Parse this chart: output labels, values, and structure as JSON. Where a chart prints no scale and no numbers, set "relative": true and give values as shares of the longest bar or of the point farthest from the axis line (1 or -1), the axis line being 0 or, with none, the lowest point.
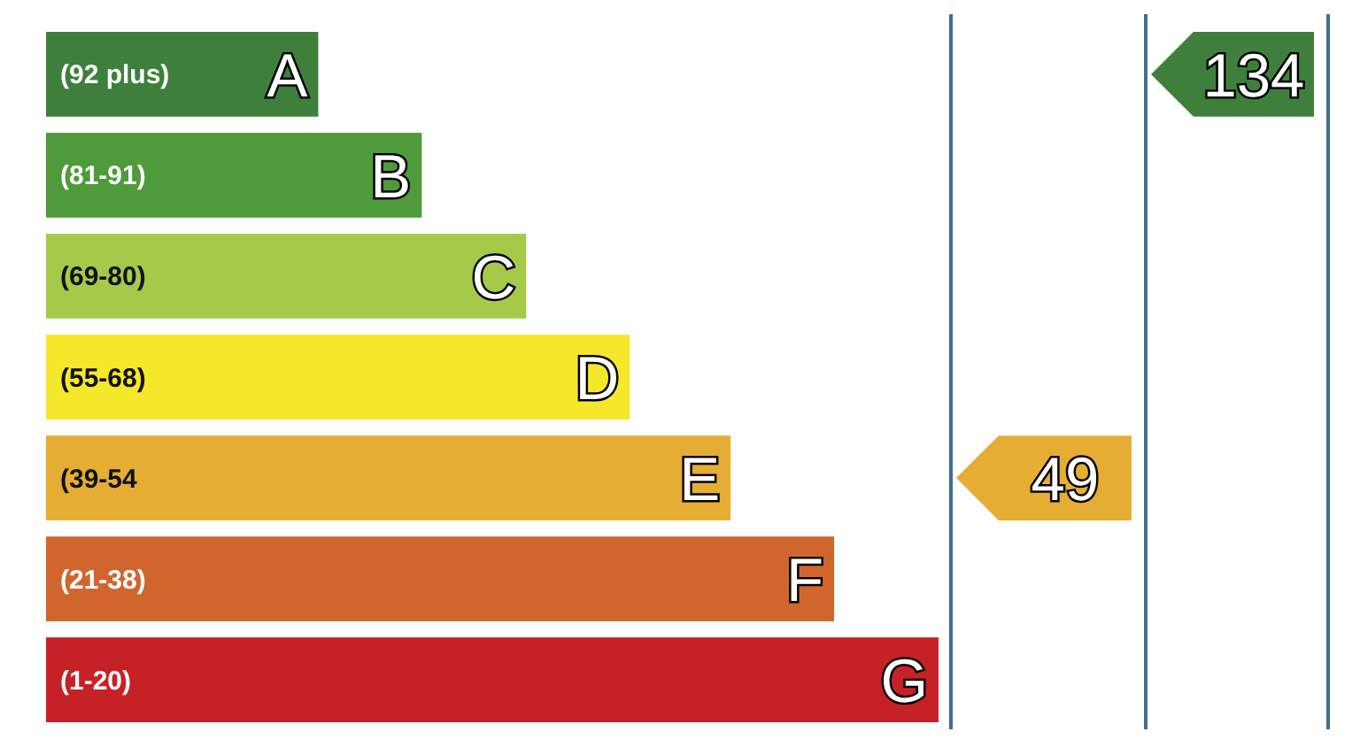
{
  "chart_data": {
    "type": "bar",
    "orientation": "horizontal",
    "relative": true,
    "categories": [
      "(92 plus)",
      "(81-91)",
      "(69-80)",
      "(55-68)",
      "(39-54",
      "(21-38)",
      "(1-20)"
    ],
    "values": [
      0.305,
      0.421,
      0.538,
      0.654,
      0.767,
      0.883,
      1
    ],
    "colors": [
      "#3f7f3c",
      "#4f9a3a",
      "#a6c94a",
      "#f5e82a",
      "#e5ad34",
      "#d0662e",
      "#c62127"
    ],
    "annotations": [
      {
        "text": "A",
        "y": "(92 plus)"
      },
      {
        "text": "B",
        "y": "(81-91)"
      },
      {
        "text": "C",
        "y": "(69-80)"
      },
      {
        "text": "D",
        "y": "(55-68)"
      },
      {
        "text": "E",
        "y": "(39-54"
      },
      {
        "text": "F",
        "y": "(21-38)"
      },
      {
        "text": "G",
        "y": "(1-20)"
      },
      "49",
      "134"
    ]
  }
}
